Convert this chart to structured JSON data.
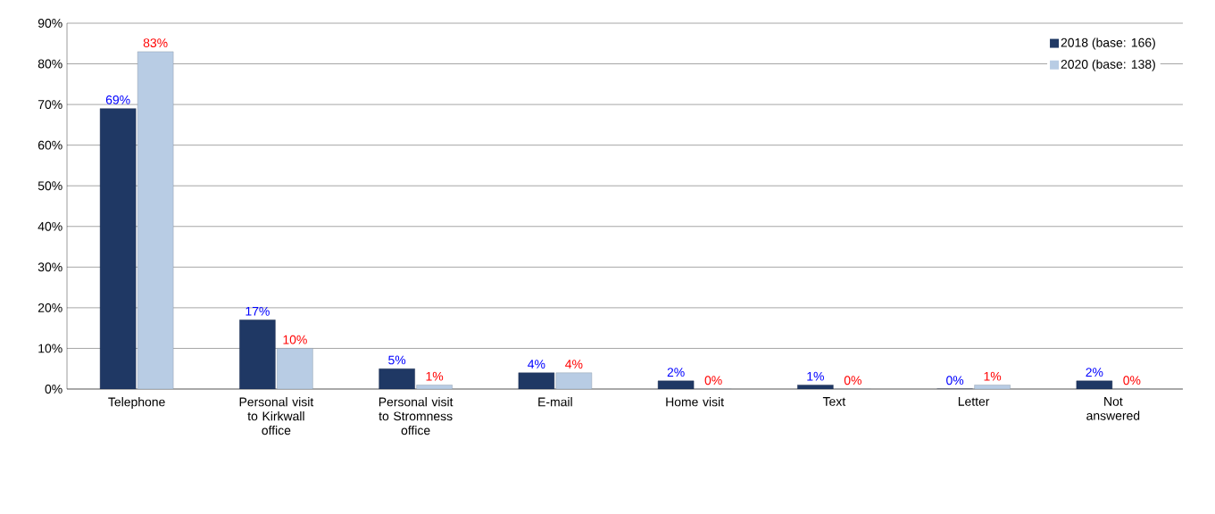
{
  "chart_data": {
    "type": "bar",
    "categories": [
      "Telephone",
      "Personal visit to Kirkwall office",
      "Personal visit to Stromness office",
      "E-mail",
      "Home visit",
      "Text",
      "Letter",
      "Not answered"
    ],
    "series": [
      {
        "name": "2018 (base: 166)",
        "color": "#1f3864",
        "values": [
          69,
          17,
          5,
          4,
          2,
          1,
          0,
          2
        ],
        "value_labels": [
          "69%",
          "17%",
          "5%",
          "4%",
          "2%",
          "1%",
          "0%",
          "2%"
        ]
      },
      {
        "name": "2020 (base: 138)",
        "color": "#b8cce4",
        "values": [
          83,
          10,
          1,
          4,
          0,
          0,
          1,
          0
        ],
        "value_labels": [
          "83%",
          "10%",
          "1%",
          "4%",
          "0%",
          "0%",
          "1%",
          "0%"
        ]
      }
    ],
    "ylim": [
      0,
      90
    ],
    "yticks": [
      {
        "value": 0,
        "label": "0%"
      },
      {
        "value": 10,
        "label": "10%"
      },
      {
        "value": 20,
        "label": "20%"
      },
      {
        "value": 30,
        "label": "30%"
      },
      {
        "value": 40,
        "label": "40%"
      },
      {
        "value": 50,
        "label": "50%"
      },
      {
        "value": 60,
        "label": "60%"
      },
      {
        "value": 70,
        "label": "70%"
      },
      {
        "value": 80,
        "label": "80%"
      },
      {
        "value": 90,
        "label": "90%"
      }
    ],
    "grid": "y",
    "legend": "top right"
  }
}
